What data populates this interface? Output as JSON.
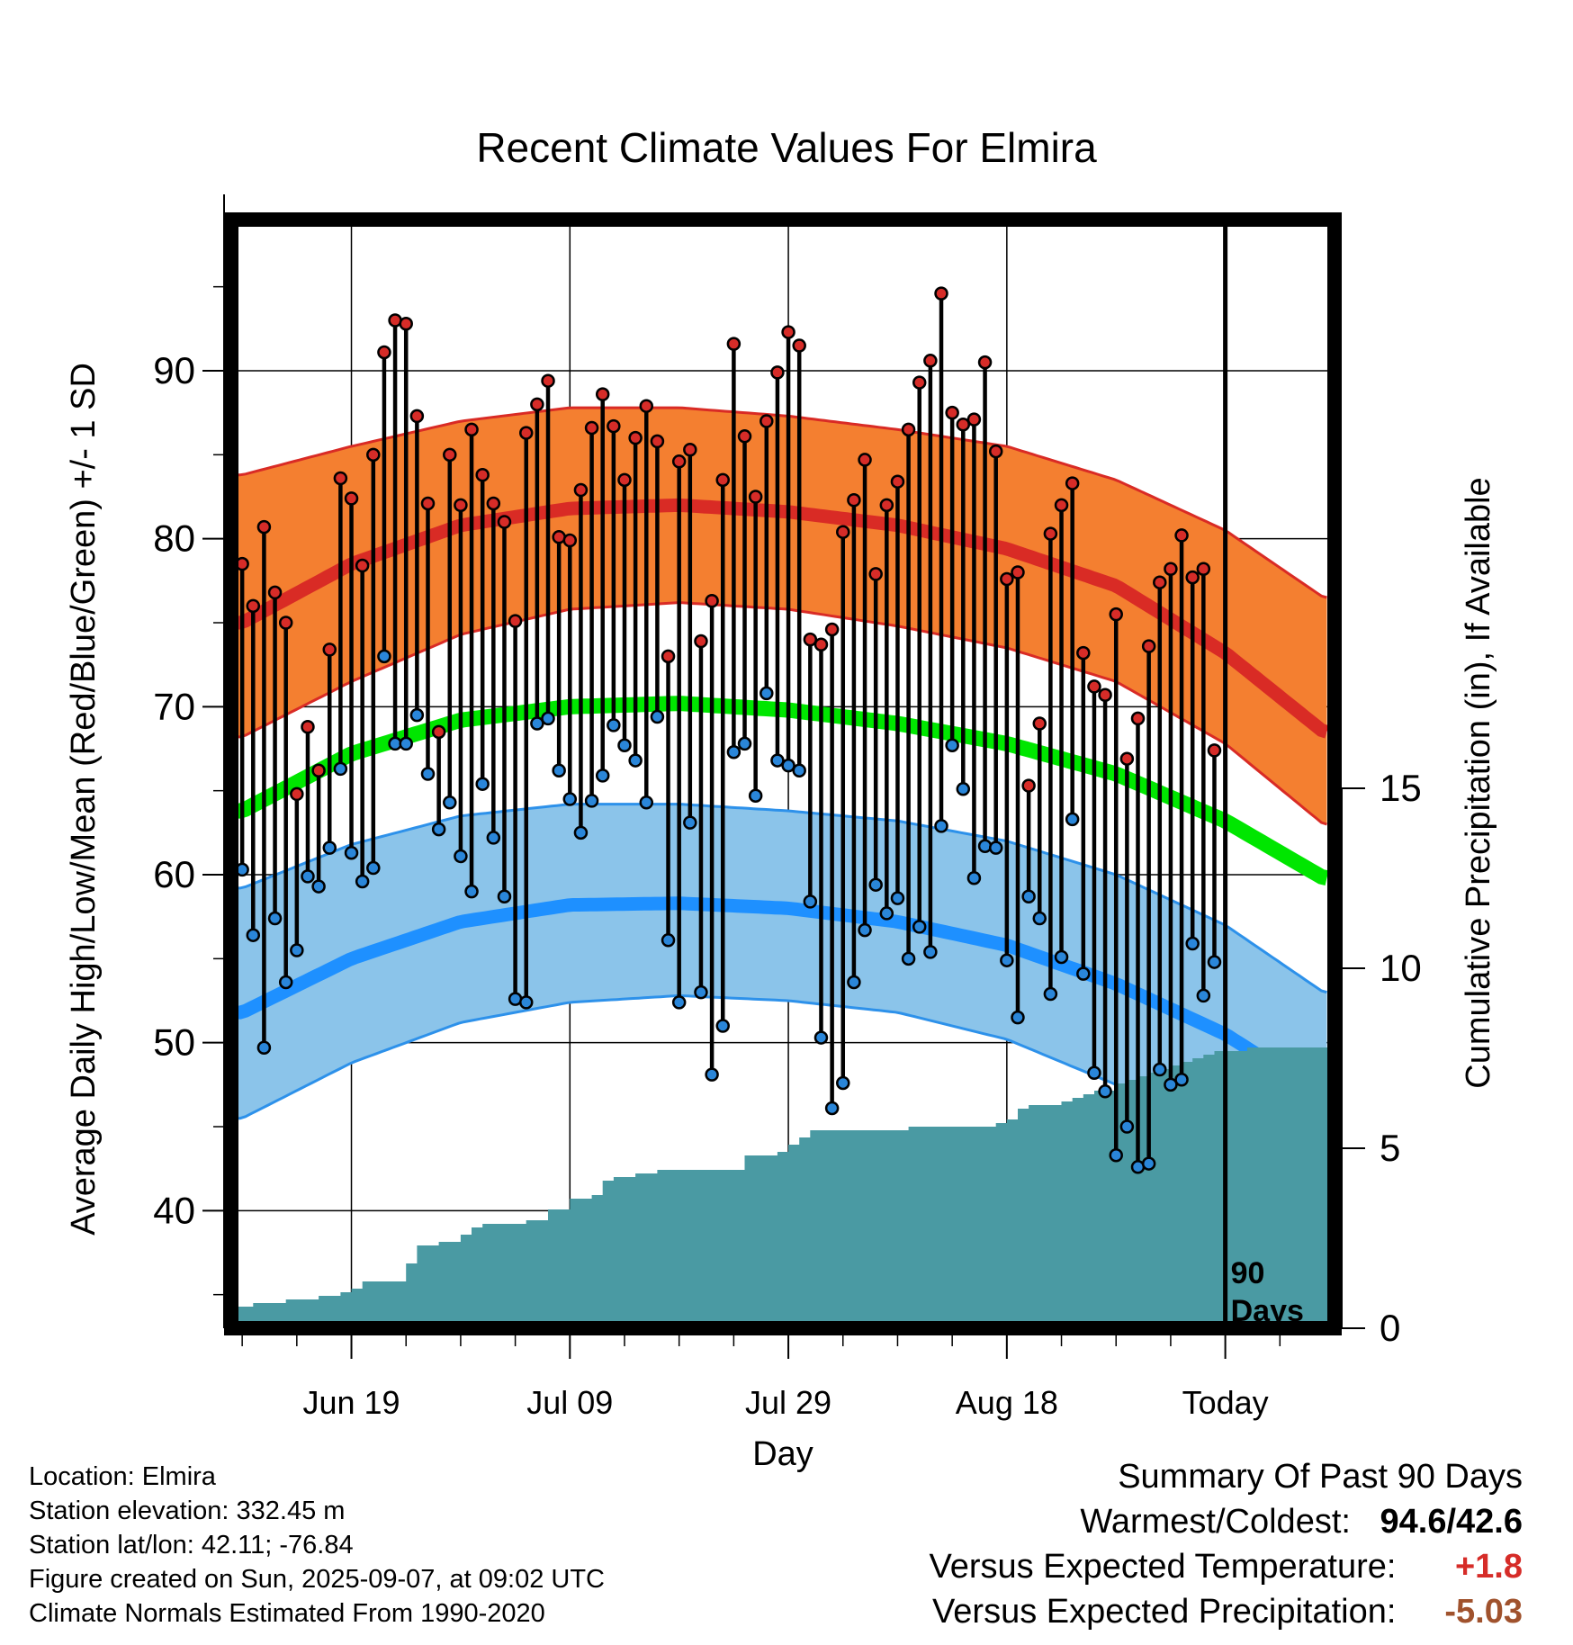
{
  "chart_data": {
    "type": "line",
    "title": "Recent Climate Values For Elmira",
    "xlabel": "Day",
    "ylabel": "Average Daily High/Low/Mean (Red/Blue/Green) +/- 1 SD",
    "y2label": "Cumulative Precipitation (in), If Available",
    "ylim": [
      33,
      99
    ],
    "y2lim": [
      0,
      30.8
    ],
    "yticks": [
      40,
      50,
      60,
      70,
      80,
      90
    ],
    "y2ticks": [
      0,
      5,
      10,
      15
    ],
    "xlim": [
      -1,
      100
    ],
    "xticks": [
      {
        "day": 10,
        "label": "Jun 19"
      },
      {
        "day": 30,
        "label": "Jul 09"
      },
      {
        "day": 50,
        "label": "Jul 29"
      },
      {
        "day": 70,
        "label": "Aug 18"
      },
      {
        "day": 90,
        "label": "Today"
      }
    ],
    "today_day": 90,
    "today_label": [
      "90",
      "Days"
    ],
    "grid": true,
    "normals": {
      "day": [
        0,
        10,
        20,
        30,
        40,
        50,
        60,
        70,
        80,
        90,
        99
      ],
      "high_mean": [
        75.0,
        78.5,
        80.8,
        81.8,
        82.0,
        81.6,
        80.8,
        79.4,
        77.2,
        73.2,
        68.5
      ],
      "high_upper": [
        83.8,
        85.5,
        87.0,
        87.8,
        87.8,
        87.3,
        86.5,
        85.5,
        83.5,
        80.5,
        76.5
      ],
      "high_lower": [
        68.2,
        71.5,
        74.3,
        75.8,
        76.2,
        75.8,
        74.8,
        73.5,
        71.5,
        67.8,
        63.0
      ],
      "mean_mean": [
        63.8,
        67.2,
        69.2,
        70.0,
        70.2,
        69.8,
        69.0,
        67.8,
        66.0,
        63.2,
        59.8
      ],
      "low_mean": [
        51.8,
        55.0,
        57.2,
        58.2,
        58.3,
        58.0,
        57.2,
        55.8,
        53.5,
        50.5,
        46.8
      ],
      "low_upper": [
        59.2,
        61.8,
        63.5,
        64.2,
        64.2,
        63.8,
        63.2,
        62.0,
        60.0,
        57.0,
        53.0
      ],
      "low_lower": [
        45.5,
        48.8,
        51.2,
        52.4,
        52.8,
        52.5,
        51.8,
        50.2,
        47.5,
        43.5,
        39.5
      ]
    },
    "daily": {
      "high": [
        78.5,
        76.0,
        80.7,
        76.8,
        75.0,
        64.8,
        68.8,
        66.2,
        73.4,
        83.6,
        82.4,
        78.4,
        85.0,
        91.1,
        93.0,
        92.8,
        87.3,
        82.1,
        68.5,
        85.0,
        82.0,
        86.5,
        83.8,
        82.1,
        81.0,
        75.1,
        86.3,
        88.0,
        89.4,
        80.1,
        79.9,
        82.9,
        86.6,
        88.6,
        86.7,
        83.5,
        86.0,
        87.9,
        85.8,
        73.0,
        84.6,
        85.3,
        73.9,
        76.3,
        83.5,
        91.6,
        86.1,
        82.5,
        87.0,
        89.9,
        92.3,
        91.5,
        74.0,
        73.7,
        74.6,
        80.4,
        82.3,
        84.7,
        77.9,
        82.0,
        83.4,
        86.5,
        89.3,
        90.6,
        94.6,
        87.5,
        86.8,
        87.1,
        90.5,
        85.2,
        77.6,
        78.0,
        65.3,
        69.0,
        80.3,
        82.0,
        83.3,
        73.2,
        71.2,
        70.7,
        75.5,
        66.9,
        69.3,
        73.6,
        77.4,
        78.2,
        80.2,
        77.7,
        78.2,
        67.4
      ],
      "low": [
        60.3,
        56.4,
        49.7,
        57.4,
        53.6,
        55.5,
        59.9,
        59.3,
        61.6,
        66.3,
        61.3,
        59.6,
        60.4,
        73.0,
        67.8,
        67.8,
        69.5,
        66.0,
        62.7,
        64.3,
        61.1,
        59.0,
        65.4,
        62.2,
        58.7,
        52.6,
        52.4,
        69.0,
        69.3,
        66.2,
        64.5,
        62.5,
        64.4,
        65.9,
        68.9,
        67.7,
        66.8,
        64.3,
        69.4,
        56.1,
        52.4,
        63.1,
        53.0,
        48.1,
        51.0,
        67.3,
        67.8,
        64.7,
        70.8,
        66.8,
        66.5,
        66.2,
        58.4,
        50.3,
        46.1,
        47.6,
        53.6,
        56.7,
        59.4,
        57.7,
        58.6,
        55.0,
        56.9,
        55.4,
        62.9,
        67.7,
        65.1,
        59.8,
        61.7,
        61.6,
        54.9,
        51.5,
        58.7,
        57.4,
        52.9,
        55.1,
        63.3,
        54.1,
        48.2,
        47.1,
        43.3,
        45.0,
        42.6,
        42.8,
        48.4,
        47.5,
        47.8,
        55.9,
        52.8,
        54.8
      ]
    },
    "precip": {
      "day": [
        0,
        1,
        4,
        7,
        9,
        10,
        11,
        14,
        15,
        16,
        18,
        20,
        21,
        22,
        24,
        26,
        28,
        30,
        32,
        33,
        34,
        36,
        38,
        44,
        46,
        49,
        50,
        51,
        52,
        61,
        62,
        69,
        70,
        71,
        72,
        75,
        76,
        77,
        78,
        80,
        81,
        82,
        83,
        84,
        85,
        86,
        87,
        88,
        89,
        92,
        99
      ],
      "cumulative": [
        0.6,
        0.7,
        0.8,
        0.9,
        1.0,
        1.1,
        1.3,
        1.3,
        1.8,
        2.3,
        2.4,
        2.6,
        2.8,
        2.9,
        2.9,
        3.0,
        3.3,
        3.6,
        3.7,
        4.1,
        4.2,
        4.3,
        4.4,
        4.4,
        4.8,
        4.9,
        5.1,
        5.3,
        5.5,
        5.6,
        5.6,
        5.7,
        5.8,
        6.1,
        6.2,
        6.3,
        6.4,
        6.5,
        6.6,
        6.8,
        6.9,
        7.0,
        7.1,
        7.2,
        7.3,
        7.4,
        7.5,
        7.6,
        7.7,
        7.8,
        7.8
      ]
    },
    "colors": {
      "high_band": "#f47f30",
      "high_line": "#d92b25",
      "low_band": "#8bc4ea",
      "low_line": "#1e90ff",
      "low_edge": "#2d91ea",
      "mean_line": "#00e600",
      "precip": "#4a9aa3",
      "high_dot": "#d62c28",
      "low_dot": "#2a86d9"
    }
  },
  "info": {
    "location": "Location: Elmira",
    "elevation": "Station elevation: 332.45 m",
    "latlon": "Station lat/lon: 42.11; -76.84",
    "created": "Figure created on Sun, 2025-09-07, at 09:02 UTC",
    "normals": "Climate Normals Estimated From 1990-2020"
  },
  "summary": {
    "title": "Summary Of Past 90 Days",
    "warm_cold_label": "Warmest/Coldest:",
    "warm_cold_value": "94.6/42.6",
    "temp_label": "Versus Expected Temperature:",
    "temp_value": "+1.8",
    "temp_color": "#d62c28",
    "precip_label": "Versus Expected Precipitation:",
    "precip_value": "-5.03",
    "precip_color": "#a0522d"
  }
}
